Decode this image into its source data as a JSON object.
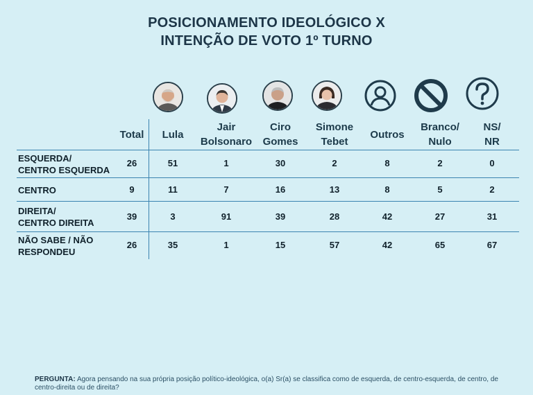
{
  "chart_data": {
    "type": "table",
    "title_lines": [
      "POSICIONAMENTO IDEOLÓGICO X",
      "INTENÇÃO DE VOTO 1º TURNO"
    ],
    "columns": [
      {
        "key": "total",
        "label": [
          "Total"
        ]
      },
      {
        "key": "lula",
        "label": [
          "Lula"
        ],
        "icon": "lula-photo-icon"
      },
      {
        "key": "bolsonaro",
        "label": [
          "Jair",
          "Bolsonaro"
        ],
        "icon": "bolsonaro-photo-icon"
      },
      {
        "key": "ciro",
        "label": [
          "Ciro",
          "Gomes"
        ],
        "icon": "ciro-photo-icon"
      },
      {
        "key": "simone",
        "label": [
          "Simone",
          "Tebet"
        ],
        "icon": "simone-photo-icon"
      },
      {
        "key": "outros",
        "label": [
          "Outros"
        ],
        "icon": "user-circle-icon"
      },
      {
        "key": "branco",
        "label": [
          "Branco/",
          "Nulo"
        ],
        "icon": "prohibited-icon"
      },
      {
        "key": "nsnr",
        "label": [
          "NS/",
          "NR"
        ],
        "icon": "question-circle-icon"
      }
    ],
    "rows": [
      {
        "label": [
          "ESQUERDA/",
          "CENTRO ESQUERDA"
        ],
        "values": [
          26,
          51,
          1,
          30,
          2,
          8,
          2,
          0
        ]
      },
      {
        "label": [
          "CENTRO"
        ],
        "values": [
          9,
          11,
          7,
          16,
          13,
          8,
          5,
          2
        ]
      },
      {
        "label": [
          "DIREITA/",
          "CENTRO DIREITA"
        ],
        "values": [
          39,
          3,
          91,
          39,
          28,
          42,
          27,
          31
        ]
      },
      {
        "label": [
          "NÃO SABE / NÃO",
          "RESPONDEU"
        ],
        "values": [
          26,
          35,
          1,
          15,
          57,
          42,
          65,
          67
        ]
      }
    ]
  },
  "footer": {
    "label": "PERGUNTA:",
    "text": "Agora pensando na sua própria posição político-ideológica, o(a) Sr(a) se classifica como de esquerda, de centro-esquerda, de centro, de centro-direita ou de direita?"
  },
  "colors": {
    "background": "#d6eff5",
    "grid": "#3a83b0",
    "icon_dark": "#1f3b4b"
  }
}
